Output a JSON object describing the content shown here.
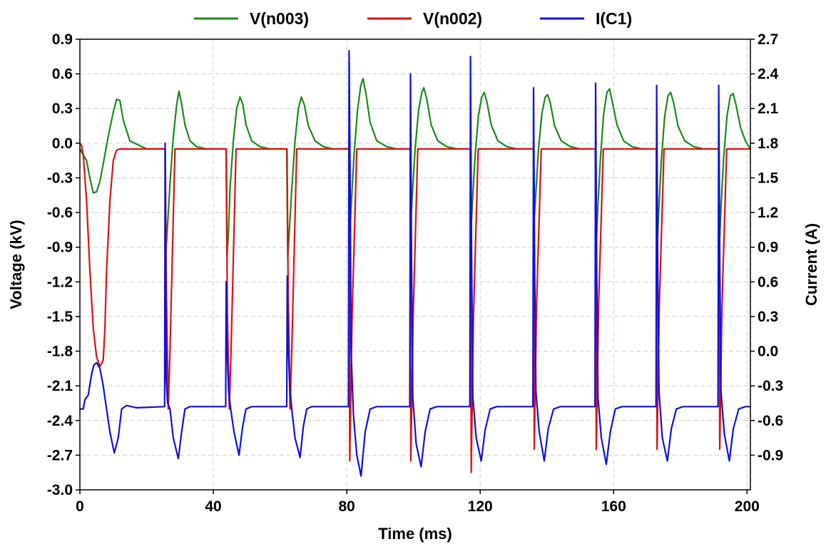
{
  "chart_data": {
    "type": "line",
    "xlabel": "Time (ms)",
    "ylabel": "Voltage (kV)",
    "y2label": "Current (A)",
    "xlim": [
      0,
      201
    ],
    "ylim": [
      -3.0,
      0.9
    ],
    "y2lim": [
      -1.2,
      2.7
    ],
    "x_ticks": [
      "0",
      "40",
      "80",
      "120",
      "160",
      "200"
    ],
    "y_ticks": [
      "0.9",
      "0.6",
      "0.3",
      "0.0",
      "-0.3",
      "-0.6",
      "-0.9",
      "-1.2",
      "-1.5",
      "-1.8",
      "-2.1",
      "-2.4",
      "-2.7",
      "-3.0"
    ],
    "y2_ticks": [
      "2.7",
      "2.4",
      "2.1",
      "1.8",
      "1.5",
      "1.2",
      "0.9",
      "0.6",
      "0.3",
      "0.0",
      "-0.3",
      "-0.6",
      "-0.9"
    ],
    "grid": true,
    "legend_position": "top",
    "series": [
      {
        "name": "V(n003)",
        "axis": "left",
        "color": "#1a8a1a",
        "x": [
          0,
          1,
          2,
          3,
          4,
          5,
          6,
          7,
          8,
          9,
          10,
          11,
          12,
          13,
          15,
          20,
          25.5,
          25.8,
          26.2,
          27,
          28,
          29,
          29.7,
          30.5,
          31.5,
          33,
          35,
          38,
          43.8,
          44.1,
          44.5,
          45,
          46,
          47,
          48,
          48.8,
          49.8,
          51.5,
          54,
          57,
          62,
          62.3,
          62.7,
          63.5,
          64.5,
          65.5,
          66.4,
          67.3,
          68.5,
          70.5,
          73,
          76,
          80.7,
          81,
          81.4,
          82.2,
          83.2,
          84.2,
          84.9,
          85.8,
          87,
          89,
          92,
          95,
          99,
          99.3,
          99.7,
          100.5,
          101.5,
          102.5,
          103.1,
          104,
          105.3,
          107.3,
          110,
          113,
          117,
          117.3,
          117.7,
          118.5,
          119.5,
          120.5,
          121.2,
          122,
          123.3,
          125.3,
          128,
          131,
          136,
          136.3,
          136.7,
          137.5,
          138.5,
          139.5,
          140.2,
          141,
          142.3,
          144.3,
          147,
          150,
          154.5,
          154.8,
          155.2,
          156,
          157,
          158,
          158.8,
          159.6,
          161,
          163,
          165.5,
          168.5,
          172.8,
          173.1,
          173.5,
          174.3,
          175.3,
          176.3,
          177.1,
          178,
          179.3,
          181.3,
          184,
          187,
          191.5,
          191.8,
          192.2,
          193,
          194,
          195,
          195.8,
          196.7,
          198,
          199.5,
          201
        ],
        "y": [
          -0.05,
          -0.1,
          -0.15,
          -0.3,
          -0.43,
          -0.42,
          -0.33,
          -0.18,
          -0.02,
          0.13,
          0.27,
          0.38,
          0.37,
          0.2,
          0.02,
          -0.05,
          -0.05,
          -0.95,
          -0.75,
          -0.35,
          0.05,
          0.33,
          0.45,
          0.34,
          0.16,
          0.02,
          -0.03,
          -0.05,
          -0.05,
          -0.98,
          -0.8,
          -0.4,
          0.02,
          0.3,
          0.4,
          0.34,
          0.16,
          0.02,
          -0.03,
          -0.05,
          -0.05,
          -1.0,
          -0.8,
          -0.4,
          0.02,
          0.3,
          0.4,
          0.33,
          0.15,
          0.02,
          -0.03,
          -0.05,
          -0.05,
          -0.72,
          -0.5,
          -0.1,
          0.28,
          0.5,
          0.56,
          0.42,
          0.18,
          0.02,
          -0.03,
          -0.05,
          -0.05,
          -0.62,
          -0.42,
          -0.05,
          0.28,
          0.44,
          0.48,
          0.38,
          0.16,
          0.02,
          -0.03,
          -0.05,
          -0.05,
          -0.72,
          -0.5,
          -0.1,
          0.25,
          0.4,
          0.44,
          0.36,
          0.16,
          0.02,
          -0.03,
          -0.05,
          -0.05,
          -0.62,
          -0.42,
          -0.05,
          0.26,
          0.4,
          0.42,
          0.35,
          0.15,
          0.02,
          -0.03,
          -0.05,
          -0.05,
          -0.88,
          -0.6,
          -0.15,
          0.25,
          0.44,
          0.47,
          0.36,
          0.16,
          0.02,
          -0.03,
          -0.05,
          -0.05,
          -0.9,
          -0.6,
          -0.15,
          0.23,
          0.41,
          0.44,
          0.35,
          0.15,
          0.02,
          -0.03,
          -0.05,
          -0.05,
          -0.82,
          -0.55,
          -0.12,
          0.24,
          0.41,
          0.43,
          0.33,
          0.14,
          0.02,
          -0.05
        ]
      },
      {
        "name": "V(n002)",
        "axis": "left",
        "color": "#dd1010",
        "x": [
          0,
          0.5,
          1,
          2,
          3,
          4,
          5,
          6,
          7,
          7.5,
          8,
          9,
          10,
          11,
          12,
          20,
          25.6,
          25.9,
          26.5,
          27,
          28.5,
          43.9,
          44.2,
          44.8,
          45.3,
          46.8,
          62.1,
          62.4,
          63,
          63.5,
          65,
          80.7,
          80.9,
          81.6,
          83,
          99,
          99.2,
          99.9,
          101.3,
          117.1,
          117.3,
          118,
          119.4,
          136,
          136.2,
          136.9,
          138.3,
          154.6,
          154.8,
          155.5,
          156.9,
          172.8,
          173,
          173.7,
          175.1,
          191.6,
          191.8,
          192.5,
          193.9,
          201
        ],
        "y": [
          0.0,
          -0.02,
          -0.1,
          -0.5,
          -1.1,
          -1.6,
          -1.85,
          -1.93,
          -1.88,
          -1.6,
          -1.1,
          -0.5,
          -0.15,
          -0.06,
          -0.05,
          -0.05,
          -0.05,
          -1.2,
          -2.3,
          -1.8,
          -0.05,
          -0.05,
          -1.45,
          -2.3,
          -1.8,
          -0.05,
          -0.05,
          -1.15,
          -2.3,
          -1.8,
          -0.05,
          -0.05,
          -2.75,
          -1.5,
          -0.05,
          -0.05,
          -2.75,
          -1.5,
          -0.05,
          -0.05,
          -2.85,
          -1.5,
          -0.05,
          -0.05,
          -2.65,
          -1.4,
          -0.05,
          -0.05,
          -2.65,
          -1.4,
          -0.05,
          -0.05,
          -2.65,
          -1.4,
          -0.05,
          -0.05,
          -2.65,
          -1.4,
          -0.05,
          -0.05
        ]
      },
      {
        "name": "I(C1)",
        "axis": "right",
        "color": "#1010dd",
        "x": [
          0,
          1,
          1.5,
          2.5,
          3.5,
          4.2,
          5,
          6,
          7,
          8,
          9,
          10.3,
          11.5,
          12.5,
          14,
          17,
          25.4,
          25.55,
          25.7,
          25.9,
          26.3,
          27,
          28,
          29.5,
          30.5,
          31.5,
          33,
          43.7,
          43.85,
          44.0,
          44.2,
          44.6,
          45.2,
          46.2,
          47.7,
          48.8,
          49.8,
          51.5,
          62.0,
          62.15,
          62.3,
          62.5,
          62.9,
          63.5,
          64.5,
          66,
          67,
          68,
          69.5,
          80.5,
          80.7,
          81.0,
          81.3,
          82,
          83,
          84.3,
          85.5,
          87,
          89,
          98.9,
          99.1,
          99.4,
          99.8,
          100.8,
          102.3,
          103.5,
          105,
          107,
          116.9,
          117.1,
          117.4,
          117.8,
          118.8,
          120.3,
          121.5,
          123,
          125,
          135.8,
          136.0,
          136.3,
          136.7,
          137.7,
          139.2,
          140.4,
          142,
          144,
          154.4,
          154.6,
          154.9,
          155.3,
          156.3,
          157.8,
          159,
          160.5,
          162.5,
          172.7,
          172.9,
          173.2,
          173.6,
          174.6,
          176.1,
          177.3,
          178.8,
          180.8,
          191.3,
          191.5,
          191.8,
          192.2,
          193.2,
          194.7,
          195.9,
          197.5,
          199.5,
          201
        ],
        "y": [
          -0.5,
          -0.5,
          -0.42,
          -0.38,
          -0.2,
          -0.12,
          -0.1,
          -0.15,
          -0.3,
          -0.5,
          -0.7,
          -0.88,
          -0.75,
          -0.5,
          -0.47,
          -0.49,
          -0.48,
          1.8,
          0.6,
          -0.25,
          -0.45,
          -0.5,
          -0.75,
          -0.93,
          -0.7,
          -0.5,
          -0.48,
          -0.48,
          0.6,
          0.15,
          -0.05,
          -0.35,
          -0.5,
          -0.7,
          -0.9,
          -0.65,
          -0.5,
          -0.48,
          -0.48,
          0.65,
          0.3,
          0.0,
          -0.3,
          -0.5,
          -0.75,
          -0.92,
          -0.65,
          -0.5,
          -0.48,
          -0.48,
          2.6,
          1.5,
          0.0,
          -0.55,
          -0.9,
          -1.08,
          -0.7,
          -0.5,
          -0.48,
          -0.48,
          2.4,
          0.8,
          -0.4,
          -0.8,
          -1.0,
          -0.7,
          -0.5,
          -0.48,
          -0.48,
          2.55,
          0.9,
          -0.4,
          -0.75,
          -0.95,
          -0.68,
          -0.5,
          -0.48,
          -0.48,
          2.28,
          0.8,
          -0.35,
          -0.7,
          -0.95,
          -0.67,
          -0.5,
          -0.48,
          -0.48,
          2.32,
          0.8,
          -0.4,
          -0.75,
          -0.98,
          -0.7,
          -0.5,
          -0.48,
          -0.48,
          2.3,
          0.8,
          -0.35,
          -0.75,
          -0.95,
          -0.67,
          -0.5,
          -0.48,
          -0.48,
          2.3,
          0.8,
          -0.35,
          -0.72,
          -0.95,
          -0.67,
          -0.5,
          -0.48,
          -0.48
        ]
      }
    ]
  }
}
